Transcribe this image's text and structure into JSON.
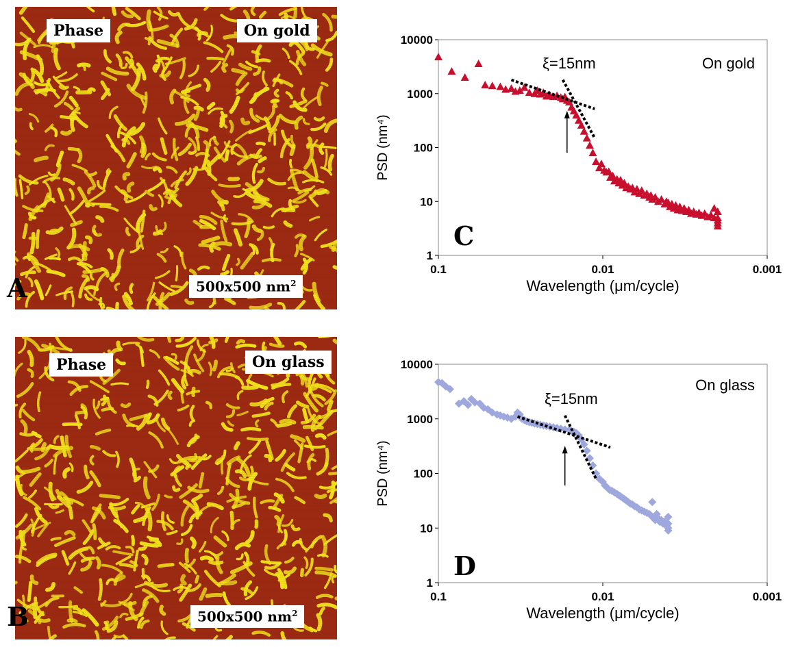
{
  "images": [
    {
      "letter": "A",
      "top_left_label": "Phase",
      "top_right_label": "On gold",
      "scale_label": "500x500 nm",
      "scale_sup": "2",
      "colors": {
        "low": "#9c2a12",
        "high": "#f2e51c"
      }
    },
    {
      "letter": "B",
      "top_left_label": "Phase",
      "top_right_label": "On glass",
      "scale_label": "500x500 nm",
      "scale_sup": "2",
      "colors": {
        "low": "#9c2a12",
        "high": "#f2e51c"
      }
    }
  ],
  "chart_data": [
    {
      "type": "scatter",
      "panel_letter": "C",
      "annotation_xi": "ξ=15nm",
      "annotation_substrate": "On gold",
      "xlabel": "Wavelength (μm/cycle)",
      "ylabel": "PSD (nm⁴)",
      "x_scale": "log-reversed",
      "y_scale": "log",
      "xlim": [
        0.1,
        0.001
      ],
      "ylim": [
        1,
        10000
      ],
      "x_ticks": [
        "0.1",
        "0.01",
        "0.001"
      ],
      "y_ticks": [
        "1",
        "10",
        "100",
        "1000",
        "10000"
      ],
      "marker": "triangle",
      "marker_color": "#c8102e",
      "points": [
        [
          0.1,
          4800
        ],
        [
          0.083,
          2600
        ],
        [
          0.069,
          2000
        ],
        [
          0.057,
          3600
        ],
        [
          0.052,
          1450
        ],
        [
          0.047,
          1400
        ],
        [
          0.042,
          1350
        ],
        [
          0.039,
          1200
        ],
        [
          0.036,
          1250
        ],
        [
          0.034,
          1100
        ],
        [
          0.032,
          1150
        ],
        [
          0.03,
          1300
        ],
        [
          0.028,
          1050
        ],
        [
          0.026,
          1000
        ],
        [
          0.025,
          1150
        ],
        [
          0.024,
          980
        ],
        [
          0.023,
          1050
        ],
        [
          0.022,
          900
        ],
        [
          0.021,
          950
        ],
        [
          0.02,
          880
        ],
        [
          0.019,
          920
        ],
        [
          0.018,
          850
        ],
        [
          0.0175,
          800
        ],
        [
          0.017,
          870
        ],
        [
          0.0165,
          750
        ],
        [
          0.016,
          700
        ],
        [
          0.0155,
          560
        ],
        [
          0.015,
          480
        ],
        [
          0.0145,
          400
        ],
        [
          0.014,
          320
        ],
        [
          0.0135,
          260
        ],
        [
          0.013,
          200
        ],
        [
          0.0125,
          150
        ],
        [
          0.012,
          110
        ],
        [
          0.0115,
          80
        ],
        [
          0.011,
          55
        ],
        [
          0.0105,
          42
        ],
        [
          0.0102,
          50
        ],
        [
          0.0098,
          38
        ],
        [
          0.0095,
          35
        ],
        [
          0.0092,
          36
        ],
        [
          0.009,
          28
        ],
        [
          0.0087,
          30
        ],
        [
          0.0085,
          24
        ],
        [
          0.0082,
          26
        ],
        [
          0.008,
          22
        ],
        [
          0.0078,
          25
        ],
        [
          0.0076,
          20
        ],
        [
          0.0074,
          22
        ],
        [
          0.0072,
          18
        ],
        [
          0.007,
          19
        ],
        [
          0.0068,
          17
        ],
        [
          0.0066,
          18
        ],
        [
          0.0064,
          15
        ],
        [
          0.0062,
          17
        ],
        [
          0.006,
          14
        ],
        [
          0.0058,
          16
        ],
        [
          0.0056,
          13
        ],
        [
          0.0054,
          14
        ],
        [
          0.0052,
          12
        ],
        [
          0.0051,
          13
        ],
        [
          0.005,
          11
        ],
        [
          0.0048,
          12
        ],
        [
          0.0046,
          10
        ],
        [
          0.0044,
          11
        ],
        [
          0.0042,
          9
        ],
        [
          0.0041,
          10
        ],
        [
          0.004,
          9.5
        ],
        [
          0.0039,
          8
        ],
        [
          0.0038,
          9
        ],
        [
          0.0037,
          7.5
        ],
        [
          0.0036,
          8.5
        ],
        [
          0.0035,
          7
        ],
        [
          0.0034,
          8
        ],
        [
          0.0033,
          6.8
        ],
        [
          0.0032,
          7.5
        ],
        [
          0.0031,
          6.5
        ],
        [
          0.003,
          7
        ],
        [
          0.0029,
          6
        ],
        [
          0.0028,
          6.5
        ],
        [
          0.0027,
          5.8
        ],
        [
          0.0026,
          6.2
        ],
        [
          0.0025,
          5.5
        ],
        [
          0.0024,
          6
        ],
        [
          0.0023,
          5.2
        ],
        [
          0.0022,
          5.6
        ],
        [
          0.0021,
          5
        ],
        [
          0.0021,
          7.5
        ],
        [
          0.002,
          5
        ],
        [
          0.002,
          4
        ],
        [
          0.002,
          3.5
        ],
        [
          0.002,
          6.5
        ],
        [
          0.002,
          4.5
        ]
      ],
      "fit_lines": [
        {
          "x": [
            0.036,
            0.0112
          ],
          "y": [
            1800,
            520
          ]
        },
        {
          "x": [
            0.0175,
            0.0112
          ],
          "y": [
            1800,
            150
          ]
        }
      ],
      "arrow": {
        "x": 0.0165,
        "y_from": 80,
        "y_to": 480
      }
    },
    {
      "type": "scatter",
      "panel_letter": "D",
      "annotation_xi": "ξ=15nm",
      "annotation_substrate": "On glass",
      "xlabel": "Wavelength (μm/cycle)",
      "ylabel": "PSD (nm⁴)",
      "x_scale": "log-reversed",
      "y_scale": "log",
      "xlim": [
        0.1,
        0.001
      ],
      "ylim": [
        1,
        10000
      ],
      "x_ticks": [
        "0.1",
        "0.01",
        "0.001"
      ],
      "y_ticks": [
        "1",
        "10",
        "100",
        "1000",
        "10000"
      ],
      "marker": "diamond",
      "marker_color": "#9fa8dc",
      "points": [
        [
          0.1,
          4700
        ],
        [
          0.095,
          4500
        ],
        [
          0.09,
          3900
        ],
        [
          0.085,
          3500
        ],
        [
          0.075,
          1900
        ],
        [
          0.07,
          2100
        ],
        [
          0.066,
          1800
        ],
        [
          0.063,
          2300
        ],
        [
          0.06,
          2000
        ],
        [
          0.056,
          1900
        ],
        [
          0.053,
          1600
        ],
        [
          0.05,
          1500
        ],
        [
          0.047,
          1300
        ],
        [
          0.044,
          1200
        ],
        [
          0.042,
          1150
        ],
        [
          0.04,
          1100
        ],
        [
          0.038,
          1050
        ],
        [
          0.036,
          1000
        ],
        [
          0.034,
          1100
        ],
        [
          0.033,
          1300
        ],
        [
          0.032,
          1200
        ],
        [
          0.031,
          1000
        ],
        [
          0.03,
          950
        ],
        [
          0.029,
          900
        ],
        [
          0.028,
          870
        ],
        [
          0.027,
          850
        ],
        [
          0.026,
          820
        ],
        [
          0.025,
          800
        ],
        [
          0.024,
          780
        ],
        [
          0.023,
          760
        ],
        [
          0.022,
          740
        ],
        [
          0.021,
          720
        ],
        [
          0.02,
          700
        ],
        [
          0.019,
          680
        ],
        [
          0.018,
          660
        ],
        [
          0.017,
          640
        ],
        [
          0.016,
          620
        ],
        [
          0.0155,
          600
        ],
        [
          0.015,
          580
        ],
        [
          0.0145,
          550
        ],
        [
          0.014,
          500
        ],
        [
          0.0135,
          420
        ],
        [
          0.013,
          340
        ],
        [
          0.0125,
          260
        ],
        [
          0.012,
          190
        ],
        [
          0.0115,
          140
        ],
        [
          0.011,
          100
        ],
        [
          0.0105,
          80
        ],
        [
          0.01,
          70
        ],
        [
          0.0097,
          60
        ],
        [
          0.0094,
          55
        ],
        [
          0.0091,
          50
        ],
        [
          0.0088,
          48
        ],
        [
          0.0085,
          45
        ],
        [
          0.0082,
          42
        ],
        [
          0.008,
          40
        ],
        [
          0.0078,
          38
        ],
        [
          0.0076,
          36
        ],
        [
          0.0074,
          34
        ],
        [
          0.0072,
          32
        ],
        [
          0.007,
          30
        ],
        [
          0.0068,
          28
        ],
        [
          0.0066,
          27
        ],
        [
          0.0064,
          25
        ],
        [
          0.0062,
          24
        ],
        [
          0.006,
          22
        ],
        [
          0.0058,
          21
        ],
        [
          0.0056,
          20
        ],
        [
          0.0054,
          19
        ],
        [
          0.0052,
          18
        ],
        [
          0.005,
          16
        ],
        [
          0.005,
          30
        ],
        [
          0.0048,
          14
        ],
        [
          0.0047,
          18
        ],
        [
          0.0046,
          15
        ],
        [
          0.0045,
          13
        ],
        [
          0.0044,
          14
        ],
        [
          0.0043,
          12
        ],
        [
          0.0042,
          13
        ],
        [
          0.0041,
          11
        ],
        [
          0.004,
          12
        ],
        [
          0.004,
          10
        ],
        [
          0.004,
          16
        ],
        [
          0.004,
          9
        ]
      ],
      "fit_lines": [
        {
          "x": [
            0.033,
            0.009
          ],
          "y": [
            1100,
            300
          ]
        },
        {
          "x": [
            0.017,
            0.011
          ],
          "y": [
            1150,
            80
          ]
        }
      ],
      "arrow": {
        "x": 0.017,
        "y_from": 60,
        "y_to": 320
      }
    }
  ]
}
